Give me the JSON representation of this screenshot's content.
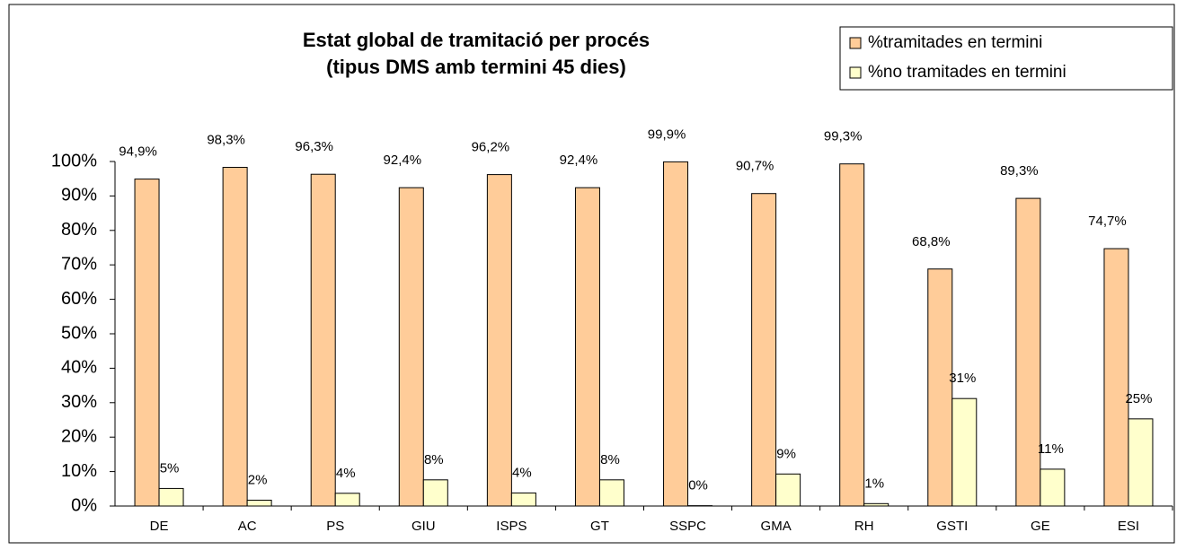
{
  "chart_data": {
    "type": "bar",
    "title": "Estat global de tramitació per procés",
    "subtitle": "(tipus DMS amb termini 45 dies)",
    "categories": [
      "DE",
      "AC",
      "PS",
      "GIU",
      "ISPS",
      "GT",
      "SSPC",
      "GMA",
      "RH",
      "GSTI",
      "GE",
      "ESI"
    ],
    "series": [
      {
        "name": "%tramitades en termini",
        "color": "#ffcc99",
        "values": [
          94.9,
          98.3,
          96.3,
          92.4,
          96.2,
          92.4,
          99.9,
          90.7,
          99.3,
          68.8,
          89.3,
          74.7
        ],
        "value_labels": [
          "94,9%",
          "98,3%",
          "96,3%",
          "92,4%",
          "96,2%",
          "92,4%",
          "99,9%",
          "90,7%",
          "99,3%",
          "68,8%",
          "89,3%",
          "74,7%"
        ]
      },
      {
        "name": "%no tramitades en termini",
        "color": "#ffffcc",
        "values": [
          5.1,
          1.7,
          3.7,
          7.6,
          3.8,
          7.6,
          0.1,
          9.3,
          0.7,
          31.2,
          10.7,
          25.3
        ],
        "value_labels": [
          "5%",
          "2%",
          "4%",
          "8%",
          "4%",
          "8%",
          "0%",
          "9%",
          "1%",
          "31%",
          "11%",
          "25%"
        ]
      }
    ],
    "ylim": [
      0,
      100
    ],
    "yticks": [
      {
        "value": 0,
        "label": "0%"
      },
      {
        "value": 10,
        "label": "10%"
      },
      {
        "value": 20,
        "label": "20%"
      },
      {
        "value": 30,
        "label": "30%"
      },
      {
        "value": 40,
        "label": "40%"
      },
      {
        "value": 50,
        "label": "50%"
      },
      {
        "value": 60,
        "label": "60%"
      },
      {
        "value": 70,
        "label": "70%"
      },
      {
        "value": 80,
        "label": "80%"
      },
      {
        "value": 90,
        "label": "90%"
      },
      {
        "value": 100,
        "label": "100%"
      }
    ],
    "legend": "top-right"
  }
}
